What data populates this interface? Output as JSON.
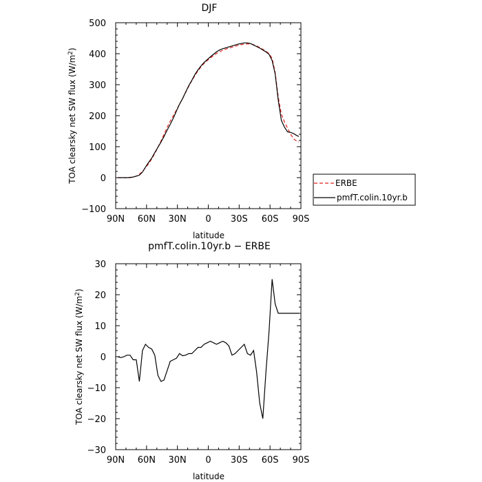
{
  "chart_data": [
    {
      "type": "line",
      "title": "DJF",
      "xlabel": "latitude",
      "ylabel": "TOA clearsky net SW flux (W/m²)",
      "x_tick_labels": [
        "90N",
        "60N",
        "30N",
        "0",
        "30S",
        "60S",
        "90S"
      ],
      "x_ticks": [
        90,
        60,
        30,
        0,
        -30,
        -60,
        -90
      ],
      "xlim": [
        90,
        -90
      ],
      "ylim": [
        -100,
        500
      ],
      "y_ticks": [
        -100,
        0,
        100,
        200,
        300,
        400,
        500
      ],
      "grid": false,
      "legend": "right-outside",
      "series": [
        {
          "name": "ERBE",
          "color": "#e0201b",
          "style": "dashed",
          "x": [
            88,
            85,
            82,
            79,
            76,
            73,
            70,
            67,
            64,
            61,
            58,
            55,
            52,
            49,
            46,
            43,
            40,
            37,
            34,
            31,
            28,
            25,
            22,
            19,
            16,
            13,
            10,
            7,
            4,
            1,
            -2,
            -5,
            -8,
            -11,
            -14,
            -17,
            -20,
            -23,
            -26,
            -29,
            -32,
            -35,
            -38,
            -41,
            -44,
            -47,
            -50,
            -53,
            -56,
            -59,
            -62,
            -65,
            -68,
            -71,
            -74,
            -77,
            -80,
            -83,
            -86,
            -88
          ],
          "y": [
            0,
            0,
            0,
            0,
            0,
            2,
            5,
            11,
            20,
            32,
            45,
            60,
            78,
            98,
            118,
            140,
            162,
            182,
            200,
            218,
            237,
            255,
            275,
            295,
            313,
            330,
            345,
            358,
            369,
            378,
            386,
            394,
            401,
            406,
            411,
            415,
            418,
            421,
            424,
            427,
            429,
            431,
            432,
            431,
            429,
            425,
            420,
            414,
            408,
            400,
            385,
            340,
            260,
            205,
            180,
            160,
            140,
            125,
            118,
            115
          ]
        },
        {
          "name": "pmfT.colin.10yr.b",
          "color": "#000000",
          "style": "solid",
          "x": [
            88,
            85,
            82,
            79,
            76,
            73,
            70,
            67,
            64,
            61,
            58,
            55,
            52,
            49,
            46,
            43,
            40,
            37,
            34,
            31,
            28,
            25,
            22,
            19,
            16,
            13,
            10,
            7,
            4,
            1,
            -2,
            -5,
            -8,
            -11,
            -14,
            -17,
            -20,
            -23,
            -26,
            -29,
            -32,
            -35,
            -38,
            -41,
            -44,
            -47,
            -50,
            -53,
            -56,
            -59,
            -62,
            -65,
            -68,
            -71,
            -74,
            -77,
            -80,
            -83,
            -86,
            -88
          ],
          "y": [
            0,
            0,
            0,
            0,
            1,
            2,
            5,
            8,
            18,
            34,
            49,
            63,
            81,
            98,
            115,
            133,
            153,
            172,
            192,
            215,
            237,
            255,
            276,
            297,
            314,
            333,
            348,
            361,
            372,
            381,
            390,
            398,
            406,
            412,
            416,
            419,
            422,
            425,
            428,
            431,
            433,
            435,
            435,
            433,
            428,
            423,
            418,
            412,
            406,
            398,
            378,
            335,
            250,
            185,
            163,
            148,
            146,
            142,
            136,
            133
          ]
        }
      ]
    },
    {
      "type": "line",
      "title": "pmfT.colin.10yr.b − ERBE",
      "xlabel": "latitude",
      "ylabel": "TOA clearsky net SW flux (W/m²)",
      "x_tick_labels": [
        "90N",
        "60N",
        "30N",
        "0",
        "30S",
        "60S",
        "90S"
      ],
      "x_ticks": [
        90,
        60,
        30,
        0,
        -30,
        -60,
        -90
      ],
      "xlim": [
        90,
        -90
      ],
      "ylim": [
        -30,
        30
      ],
      "y_ticks": [
        -30,
        -20,
        -10,
        0,
        10,
        20,
        30
      ],
      "grid": false,
      "series": [
        {
          "color": "#000000",
          "style": "solid",
          "x": [
            88,
            85,
            82,
            79,
            76,
            73,
            70,
            67,
            64,
            61,
            58,
            55,
            52,
            49,
            46,
            43,
            40,
            37,
            34,
            31,
            28,
            25,
            22,
            19,
            16,
            13,
            10,
            7,
            4,
            1,
            -2,
            -5,
            -8,
            -11,
            -14,
            -17,
            -20,
            -23,
            -26,
            -29,
            -32,
            -35,
            -38,
            -41,
            -44,
            -47,
            -50,
            -53,
            -56,
            -59,
            -62,
            -65,
            -68,
            -71,
            -74,
            -77,
            -80,
            -83,
            -86,
            -88
          ],
          "y": [
            0,
            -0.3,
            0,
            0.5,
            0.5,
            -1,
            -1,
            -8,
            2,
            4,
            3,
            2.5,
            0.5,
            -6,
            -8,
            -7.5,
            -4.5,
            -1.5,
            -1,
            -0.5,
            1,
            0.3,
            0.5,
            1,
            1,
            2,
            3,
            3,
            4,
            4.5,
            5,
            4.5,
            4,
            4.5,
            5,
            4.5,
            3.5,
            0.5,
            1,
            2,
            3,
            4,
            1,
            0.5,
            2,
            -5,
            -15,
            -20,
            -5,
            8,
            25,
            17,
            14,
            14,
            14,
            14,
            14,
            14,
            14,
            14
          ]
        }
      ]
    }
  ]
}
